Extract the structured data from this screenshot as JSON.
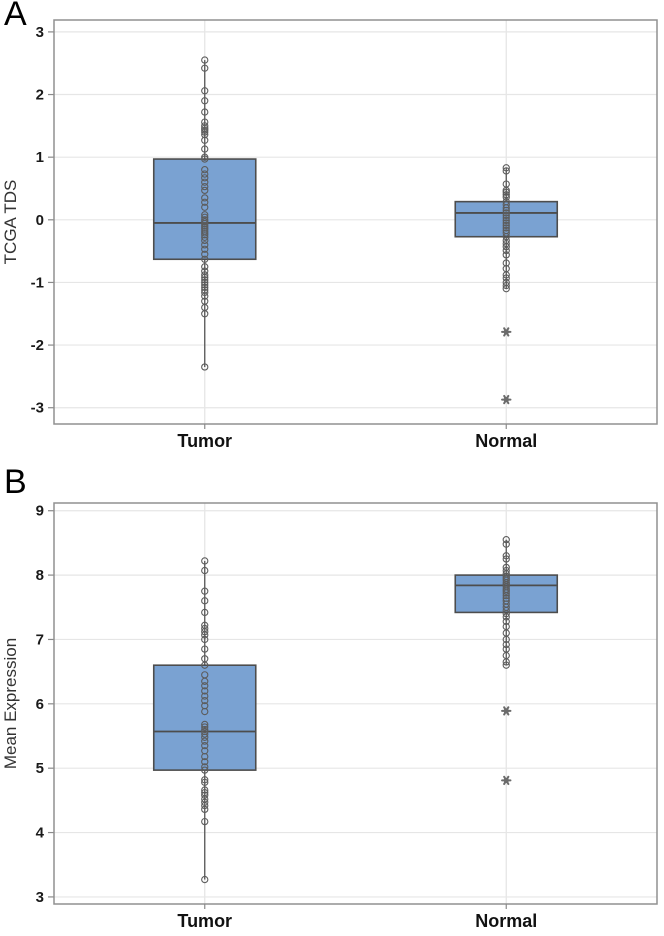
{
  "figure_title": "Two-panel boxplot figure: TCGA TDS and Mean Expression for Tumor vs Normal",
  "style": {
    "box_fill": "#7AA2D2",
    "box_stroke": "#4D4D4D",
    "median_stroke": "#4D4D4D",
    "whisker_stroke": "#555555",
    "point_stroke": "#5C5C5C",
    "outlier_fill": "#6B6B6B",
    "grid_color": "#E6E6E6",
    "panel_border": "#909090",
    "tick_color": "#8A8A8A",
    "tick_label_color": "#1A1A1A",
    "category_label_color": "#111111",
    "axis_title_color": "#333333",
    "background": "#FFFFFF"
  },
  "chart_data": [
    {
      "type": "boxplot",
      "panel_label": "A",
      "ylabel": "TCGA TDS",
      "xlabel": "",
      "ylim": [
        -3.26,
        3.19
      ],
      "yticks": [
        3,
        2,
        1,
        0,
        -1,
        -2,
        -3
      ],
      "grid": true,
      "categories": [
        "Tumor",
        "Normal"
      ],
      "groups": [
        {
          "name": "Tumor",
          "box": {
            "q1": -0.63,
            "median": -0.05,
            "q3": 0.97,
            "whisker_low": -2.35,
            "whisker_high": 2.55
          },
          "points": [
            2.55,
            2.42,
            2.06,
            1.9,
            1.72,
            1.56,
            1.5,
            1.46,
            1.43,
            1.4,
            1.36,
            1.27,
            1.13,
            1.0,
            0.97,
            0.8,
            0.73,
            0.67,
            0.6,
            0.53,
            0.47,
            0.35,
            0.28,
            0.2,
            0.08,
            0.04,
            0.0,
            -0.03,
            -0.06,
            -0.09,
            -0.12,
            -0.15,
            -0.18,
            -0.21,
            -0.24,
            -0.28,
            -0.33,
            -0.4,
            -0.47,
            -0.55,
            -0.63,
            -0.75,
            -0.82,
            -0.88,
            -0.92,
            -0.96,
            -1.0,
            -1.04,
            -1.08,
            -1.12,
            -1.16,
            -1.22,
            -1.3,
            -1.4,
            -1.5,
            -2.35
          ],
          "outliers": []
        },
        {
          "name": "Normal",
          "box": {
            "q1": -0.27,
            "median": 0.11,
            "q3": 0.29,
            "whisker_low": -1.1,
            "whisker_high": 0.83
          },
          "points": [
            0.83,
            0.78,
            0.57,
            0.47,
            0.44,
            0.4,
            0.36,
            0.29,
            0.24,
            0.19,
            0.15,
            0.11,
            0.07,
            0.03,
            -0.01,
            -0.05,
            -0.09,
            -0.13,
            -0.17,
            -0.21,
            -0.27,
            -0.33,
            -0.38,
            -0.43,
            -0.49,
            -0.56,
            -0.69,
            -0.78,
            -0.88,
            -0.93,
            -1.0,
            -1.05,
            -1.1
          ],
          "outliers": [
            -1.79,
            -2.87
          ]
        }
      ]
    },
    {
      "type": "boxplot",
      "panel_label": "B",
      "ylabel": "Mean Expression",
      "xlabel": "",
      "ylim": [
        2.89,
        9.12
      ],
      "yticks": [
        9,
        8,
        7,
        6,
        5,
        4,
        3
      ],
      "grid": true,
      "categories": [
        "Tumor",
        "Normal"
      ],
      "groups": [
        {
          "name": "Tumor",
          "box": {
            "q1": 4.97,
            "median": 5.57,
            "q3": 6.6,
            "whisker_low": 3.27,
            "whisker_high": 8.22
          },
          "points": [
            8.22,
            8.07,
            7.75,
            7.6,
            7.42,
            7.22,
            7.17,
            7.12,
            7.07,
            7.0,
            6.85,
            6.7,
            6.6,
            6.45,
            6.35,
            6.28,
            6.2,
            6.12,
            6.05,
            5.97,
            5.88,
            5.68,
            5.64,
            5.6,
            5.57,
            5.53,
            5.48,
            5.42,
            5.35,
            5.27,
            5.18,
            5.1,
            5.02,
            4.97,
            4.82,
            4.78,
            4.66,
            4.62,
            4.58,
            4.52,
            4.47,
            4.42,
            4.36,
            4.17,
            3.27
          ],
          "outliers": []
        },
        {
          "name": "Normal",
          "box": {
            "q1": 7.42,
            "median": 7.84,
            "q3": 8.0,
            "whisker_low": 6.6,
            "whisker_high": 8.55
          },
          "points": [
            8.55,
            8.48,
            8.3,
            8.25,
            8.12,
            8.07,
            8.02,
            7.98,
            7.95,
            7.92,
            7.88,
            7.85,
            7.82,
            7.78,
            7.75,
            7.72,
            7.68,
            7.64,
            7.6,
            7.55,
            7.5,
            7.45,
            7.4,
            7.35,
            7.28,
            7.2,
            7.1,
            7.0,
            6.92,
            6.85,
            6.75,
            6.65,
            6.6
          ],
          "outliers": [
            5.89,
            4.81
          ]
        }
      ]
    }
  ]
}
